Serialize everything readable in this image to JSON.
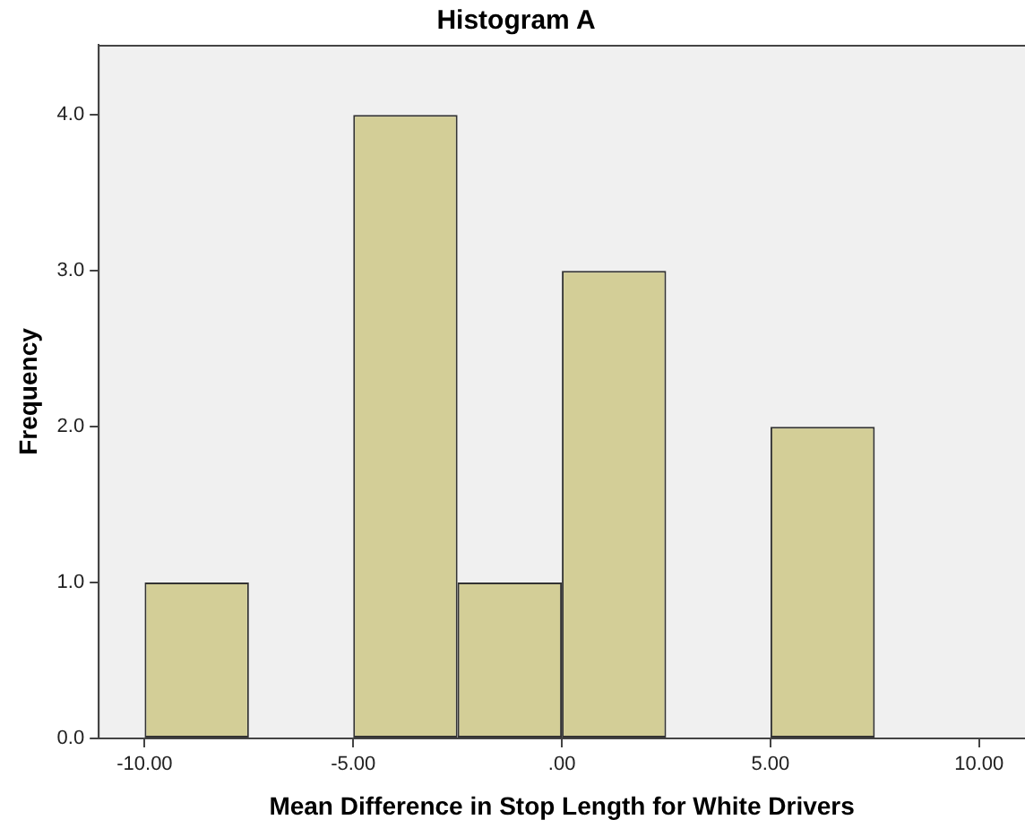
{
  "chart_data": {
    "type": "histogram",
    "title": "Histogram A",
    "xlabel": "Mean Difference in Stop Length for White Drivers",
    "ylabel": "Frequency",
    "bins": [
      -10,
      -7.5,
      -5,
      -2.5,
      0,
      2.5,
      5,
      7.5
    ],
    "values": [
      1,
      0,
      4,
      1,
      3,
      0,
      2
    ],
    "color": "#d3ce97",
    "xlim": [
      -11.1,
      11.1
    ],
    "xticks": [
      {
        "value": -10,
        "label": "-10.00"
      },
      {
        "value": -5,
        "label": "-5.00"
      },
      {
        "value": 0,
        "label": ".00"
      },
      {
        "value": 5,
        "label": "5.00"
      },
      {
        "value": 10,
        "label": "10.00"
      }
    ],
    "ylim": [
      0,
      4.45
    ],
    "yticks": [
      {
        "value": 0,
        "label": "0.0"
      },
      {
        "value": 1,
        "label": "1.0"
      },
      {
        "value": 2,
        "label": "2.0"
      },
      {
        "value": 3,
        "label": "3.0"
      },
      {
        "value": 4,
        "label": "4.0"
      }
    ],
    "grid": false,
    "legend": false
  }
}
